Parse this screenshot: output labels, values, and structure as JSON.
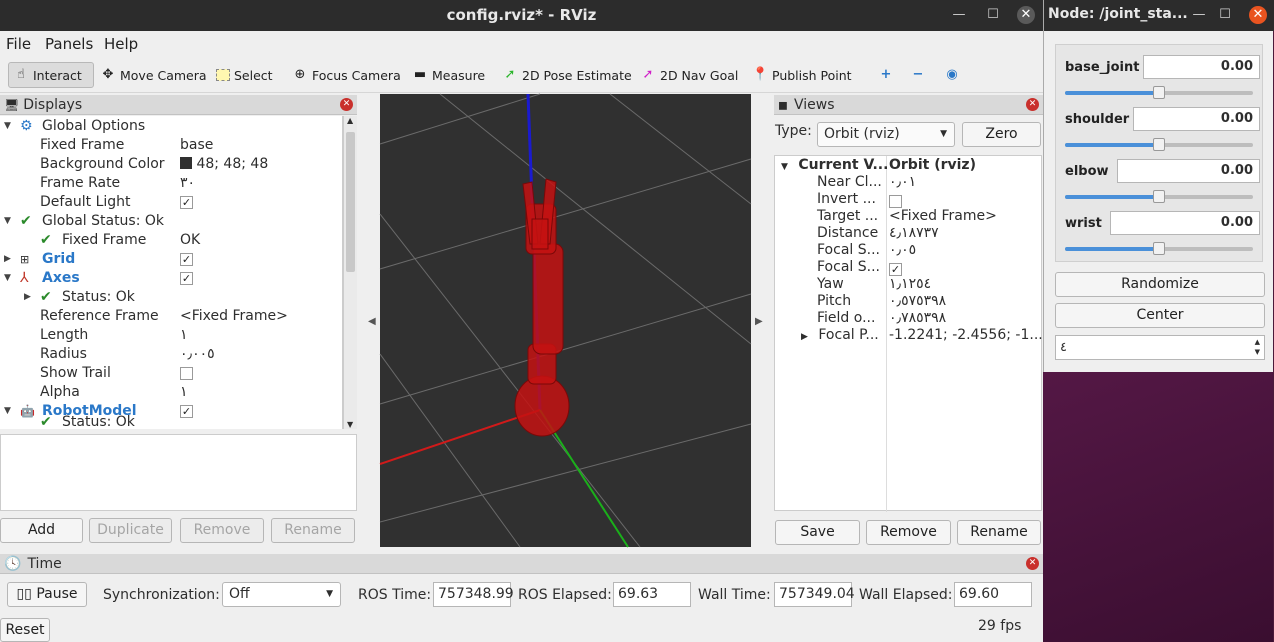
{
  "rviz": {
    "window_title": "config.rviz* - RViz",
    "menu": [
      "File",
      "Panels",
      "Help"
    ],
    "toolbar": {
      "interact": "Interact",
      "move_camera": "Move Camera",
      "select": "Select",
      "focus_camera": "Focus Camera",
      "measure": "Measure",
      "pose_estimate": "2D Pose Estimate",
      "nav_goal": "2D Nav Goal",
      "publish_point": "Publish Point"
    },
    "displays": {
      "header": "Displays",
      "rows": {
        "global_options": "Global Options",
        "fixed_frame_label": "Fixed Frame",
        "fixed_frame_value": "base",
        "bg_color_label": "Background Color",
        "bg_color_value": "48; 48; 48",
        "frame_rate_label": "Frame Rate",
        "frame_rate_value": "٣٠",
        "default_light_label": "Default Light",
        "global_status": "Global Status: Ok",
        "gs_fixed_frame": "Fixed Frame",
        "gs_fixed_frame_value": "OK",
        "grid": "Grid",
        "axes": "Axes",
        "axes_status": "Status: Ok",
        "ref_frame_label": "Reference Frame",
        "ref_frame_value": "<Fixed Frame>",
        "length_label": "Length",
        "length_value": "١",
        "radius_label": "Radius",
        "radius_value": "٠٫٠٠٥",
        "show_trail_label": "Show Trail",
        "alpha_label": "Alpha",
        "alpha_value": "١",
        "robot_model": "RobotModel",
        "robot_status": "Status: Ok"
      },
      "buttons": {
        "add": "Add",
        "duplicate": "Duplicate",
        "remove": "Remove",
        "rename": "Rename"
      }
    },
    "views": {
      "header": "Views",
      "type_label": "Type:",
      "type_value": "Orbit (rviz)",
      "zero": "Zero",
      "current_view": "Current V...",
      "current_view_value": "Orbit (rviz)",
      "near_clip": "Near Cl...",
      "near_clip_value": "٠٫٠١",
      "invert": "Invert ...",
      "target": "Target ...",
      "target_value": "<Fixed Frame>",
      "distance": "Distance",
      "distance_value": "٤٫١٨٧٣٧",
      "focal_size": "Focal S...",
      "focal_size_value": "٠٫٠٥",
      "focal_shape": "Focal S...",
      "yaw": "Yaw",
      "yaw_value": "١٫١٢٥٤",
      "pitch": "Pitch",
      "pitch_value": "٠٫٥٧٥٣٩٨",
      "fov": "Field o...",
      "fov_value": "٠٫٧٨٥٣٩٨",
      "focal_point": "Focal P...",
      "focal_point_value": "-1.2241; -2.4556; -1....",
      "buttons": {
        "save": "Save",
        "remove": "Remove",
        "rename": "Rename"
      }
    },
    "time": {
      "header": "Time",
      "pause": "Pause",
      "sync_label": "Synchronization:",
      "sync_value": "Off",
      "ros_time_label": "ROS Time:",
      "ros_time_value": "757348.99",
      "ros_elapsed_label": "ROS Elapsed:",
      "ros_elapsed_value": "69.63",
      "wall_time_label": "Wall Time:",
      "wall_time_value": "757349.04",
      "wall_elapsed_label": "Wall Elapsed:",
      "wall_elapsed_value": "69.60",
      "reset": "Reset",
      "fps": "29 fps"
    }
  },
  "jsp": {
    "window_title": "Node: /joint_sta...",
    "joints": [
      {
        "name": "base_joint",
        "value": "0.00",
        "level": 0.5
      },
      {
        "name": "shoulder",
        "value": "0.00",
        "level": 0.5
      },
      {
        "name": "elbow",
        "value": "0.00",
        "level": 0.5
      },
      {
        "name": "wrist",
        "value": "0.00",
        "level": 0.5
      }
    ],
    "randomize": "Randomize",
    "center": "Center",
    "spin_value": "٤"
  },
  "colors": {
    "viewport_bg": "#303030",
    "robot": "#cc1111",
    "accent": "#4a90d9"
  }
}
